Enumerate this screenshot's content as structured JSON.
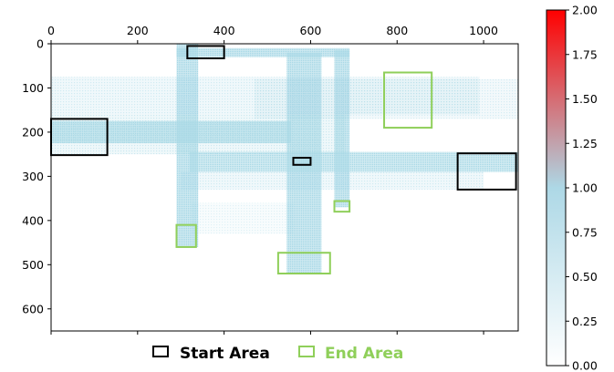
{
  "chart_data": {
    "type": "heatmap",
    "title": "",
    "xlabel": "",
    "ylabel": "",
    "xlim": [
      0,
      1080
    ],
    "ylim": [
      650,
      0
    ],
    "x_ticks": [
      "0",
      "200",
      "400",
      "600",
      "800",
      "1000"
    ],
    "y_ticks": [
      "0",
      "100",
      "200",
      "300",
      "400",
      "500",
      "600"
    ],
    "x_tick_values": [
      0,
      200,
      400,
      600,
      800,
      1000
    ],
    "y_tick_values": [
      0,
      100,
      200,
      300,
      400,
      500,
      600
    ],
    "grid": false,
    "colors": {
      "trajectory": "#a8d8e6",
      "start_area": "#000000",
      "end_area": "#8fcf5a"
    },
    "trajectory_bands": [
      {
        "x": [
          290,
          340
        ],
        "y": [
          0,
          460
        ],
        "density": 1.0
      },
      {
        "x": [
          545,
          625
        ],
        "y": [
          20,
          520
        ],
        "density": 1.0
      },
      {
        "x": [
          655,
          690
        ],
        "y": [
          15,
          370
        ],
        "density": 1.0
      },
      {
        "x": [
          290,
          690
        ],
        "y": [
          10,
          30
        ],
        "density": 1.0
      },
      {
        "x": [
          0,
          555
        ],
        "y": [
          175,
          225
        ],
        "density": 1.0
      },
      {
        "x": [
          320,
          1080
        ],
        "y": [
          245,
          290
        ],
        "density": 0.85
      },
      {
        "x": [
          0,
          990
        ],
        "y": [
          75,
          160
        ],
        "density": 0.3
      },
      {
        "x": [
          470,
          1080
        ],
        "y": [
          80,
          170
        ],
        "density": 0.25
      },
      {
        "x": [
          0,
          680
        ],
        "y": [
          160,
          250
        ],
        "density": 0.35
      },
      {
        "x": [
          300,
          1000
        ],
        "y": [
          290,
          330
        ],
        "density": 0.3
      },
      {
        "x": [
          325,
          560
        ],
        "y": [
          360,
          430
        ],
        "density": 0.15
      }
    ],
    "start_areas": [
      {
        "x": [
          0,
          130
        ],
        "y": [
          170,
          252
        ]
      },
      {
        "x": [
          315,
          400
        ],
        "y": [
          5,
          33
        ]
      },
      {
        "x": [
          560,
          600
        ],
        "y": [
          258,
          274
        ]
      },
      {
        "x": [
          940,
          1075
        ],
        "y": [
          248,
          330
        ]
      }
    ],
    "end_areas": [
      {
        "x": [
          770,
          880
        ],
        "y": [
          65,
          190
        ]
      },
      {
        "x": [
          290,
          335
        ],
        "y": [
          410,
          460
        ]
      },
      {
        "x": [
          525,
          645
        ],
        "y": [
          473,
          520
        ]
      },
      {
        "x": [
          655,
          690
        ],
        "y": [
          356,
          380
        ]
      }
    ],
    "legend": {
      "placement": "bottom-center",
      "entries": [
        {
          "label": "Start Area",
          "color": "#000000"
        },
        {
          "label": "End Area",
          "color": "#8fcf5a"
        }
      ]
    },
    "colorbar": {
      "range": [
        0,
        2
      ],
      "ticks": [
        "0.00",
        "0.25",
        "0.50",
        "0.75",
        "1.00",
        "1.25",
        "1.50",
        "1.75",
        "2.00"
      ],
      "tick_values": [
        0,
        0.25,
        0.5,
        0.75,
        1,
        1.25,
        1.5,
        1.75,
        2
      ],
      "stops": [
        {
          "value": 0,
          "color": "#ffffff"
        },
        {
          "value": 1,
          "color": "#add8e6"
        },
        {
          "value": 2,
          "color": "#ff0000"
        }
      ]
    }
  }
}
